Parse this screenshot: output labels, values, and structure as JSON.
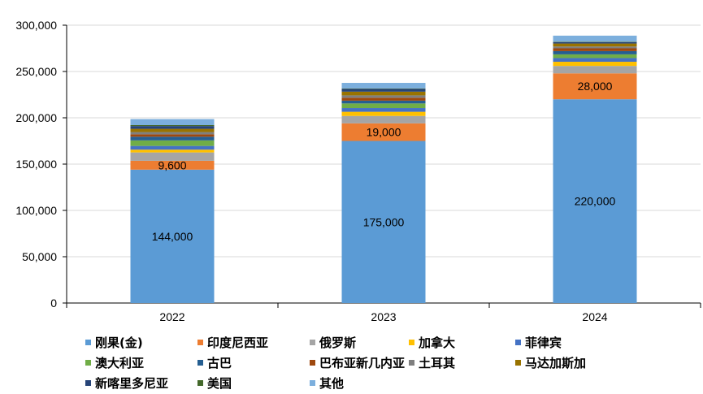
{
  "chart_data": {
    "type": "bar",
    "stacked": true,
    "title": "",
    "xlabel": "",
    "ylabel": "",
    "ylim": [
      0,
      300000
    ],
    "yticks": [
      0,
      50000,
      100000,
      150000,
      200000,
      250000,
      300000
    ],
    "ytick_labels": [
      "0",
      "50,000",
      "100,000",
      "150,000",
      "200,000",
      "250,000",
      "300,000"
    ],
    "categories": [
      "2022",
      "2023",
      "2024"
    ],
    "grid": true,
    "legend_position": "bottom",
    "series": [
      {
        "name": "刚果(金)",
        "color": "#5B9BD5",
        "values": [
          144000,
          175000,
          220000
        ],
        "labels": [
          "144,000",
          "175,000",
          "220,000"
        ]
      },
      {
        "name": "印度尼西亚",
        "color": "#ED7D31",
        "values": [
          9600,
          19000,
          28000
        ],
        "labels": [
          "9,600",
          "19,000",
          "28,000"
        ]
      },
      {
        "name": "俄罗斯",
        "color": "#A5A5A5",
        "values": [
          9000,
          8000,
          8000
        ]
      },
      {
        "name": "加拿大",
        "color": "#FFC000",
        "values": [
          3000,
          4500,
          4500
        ]
      },
      {
        "name": "菲律宾",
        "color": "#4472C4",
        "values": [
          4000,
          4000,
          4000
        ]
      },
      {
        "name": "澳大利亚",
        "color": "#70AD47",
        "values": [
          6000,
          5000,
          4000
        ]
      },
      {
        "name": "古巴",
        "color": "#255E91",
        "values": [
          4000,
          3000,
          3500
        ]
      },
      {
        "name": "巴布亚新几内亚",
        "color": "#9E480E",
        "values": [
          2500,
          3200,
          3000
        ]
      },
      {
        "name": "土耳其",
        "color": "#7F7F7F",
        "values": [
          2500,
          2500,
          2000
        ]
      },
      {
        "name": "马达加斯加",
        "color": "#997300",
        "values": [
          3500,
          4000,
          3200
        ]
      },
      {
        "name": "新喀里多尼亚",
        "color": "#264478",
        "values": [
          3000,
          3000,
          1500
        ]
      },
      {
        "name": "美国",
        "color": "#43682B",
        "values": [
          1000,
          500,
          500
        ]
      },
      {
        "name": "其他",
        "color": "#7CAFDD",
        "values": [
          6500,
          6000,
          6500
        ]
      }
    ]
  }
}
